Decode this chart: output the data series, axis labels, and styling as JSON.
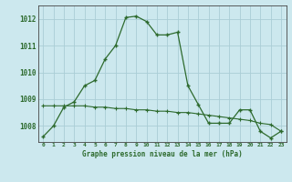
{
  "title": "Graphe pression niveau de la mer (hPa)",
  "x_labels": [
    "0",
    "1",
    "2",
    "3",
    "4",
    "5",
    "6",
    "7",
    "8",
    "9",
    "10",
    "11",
    "12",
    "13",
    "14",
    "15",
    "16",
    "17",
    "18",
    "19",
    "20",
    "21",
    "22",
    "23"
  ],
  "ylim": [
    1007.4,
    1012.5
  ],
  "yticks": [
    1008,
    1009,
    1010,
    1011,
    1012
  ],
  "background_color": "#cce8ee",
  "grid_color": "#aacdd6",
  "line_color": "#2d6a2d",
  "series1": [
    1007.6,
    1008.0,
    1008.7,
    1008.9,
    1009.5,
    1009.7,
    1010.5,
    1011.0,
    1012.05,
    1012.1,
    1011.9,
    1011.4,
    1011.4,
    1011.5,
    1009.5,
    1008.8,
    1008.1,
    1008.1,
    1008.1,
    1008.6,
    1008.6,
    1007.8,
    1007.55,
    1007.8
  ],
  "series2": [
    1008.75,
    1008.75,
    1008.75,
    1008.75,
    1008.75,
    1008.7,
    1008.7,
    1008.65,
    1008.65,
    1008.6,
    1008.6,
    1008.55,
    1008.55,
    1008.5,
    1008.5,
    1008.45,
    1008.4,
    1008.35,
    1008.3,
    1008.25,
    1008.2,
    1008.1,
    1008.05,
    1007.8
  ]
}
